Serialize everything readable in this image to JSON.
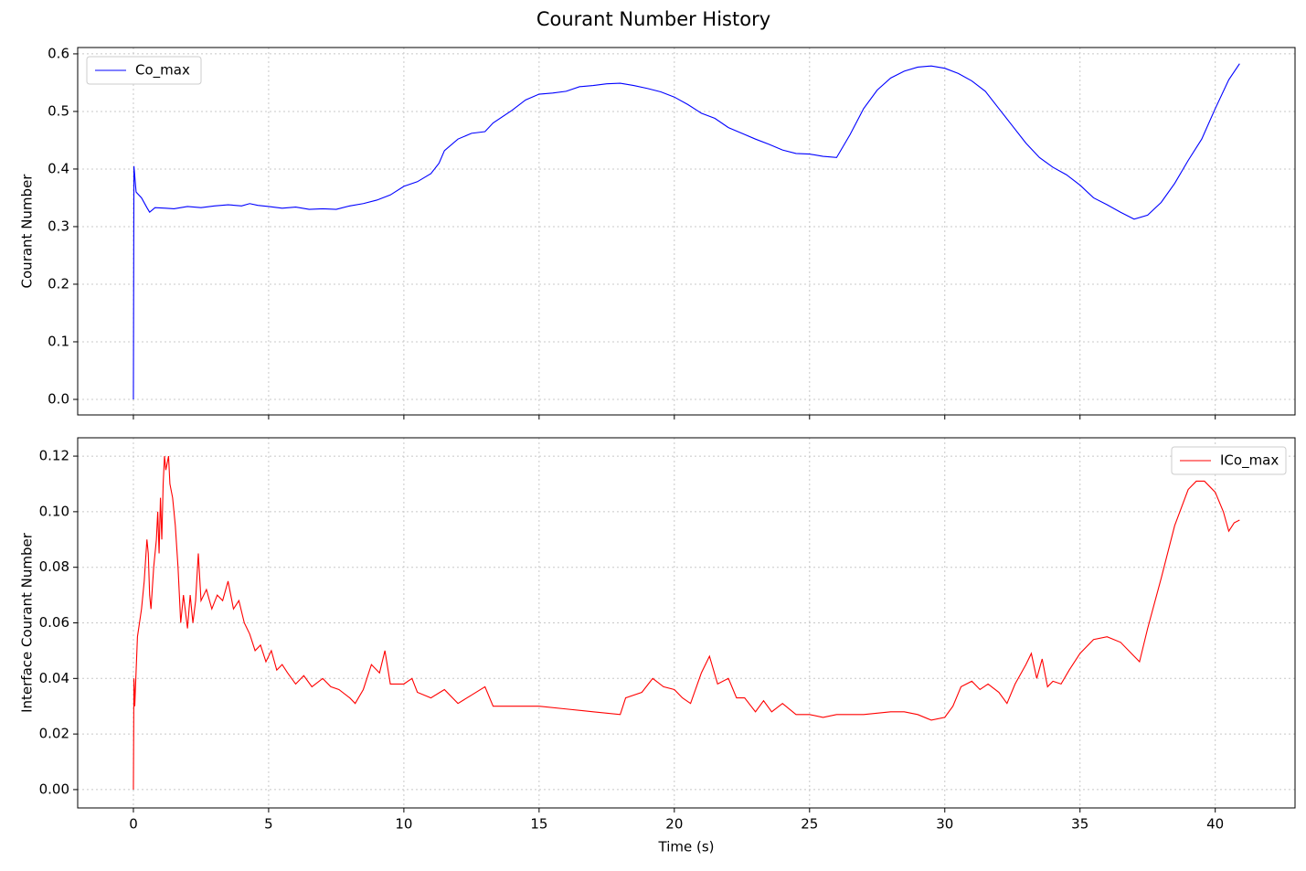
{
  "title": "Courant Number History",
  "chart_data": [
    {
      "type": "line",
      "ylabel": "Courant Number",
      "legend": "upper left",
      "grid": true,
      "x": [
        0,
        0.02,
        0.1,
        0.3,
        0.5,
        0.6,
        0.8,
        1.2,
        1.5,
        2,
        2.5,
        3,
        3.5,
        4,
        4.3,
        4.6,
        5,
        5.5,
        6,
        6.5,
        7,
        7.5,
        8,
        8.5,
        9,
        9.5,
        10,
        10.5,
        11,
        11.3,
        11.5,
        12,
        12.5,
        13,
        13.3,
        14,
        14.5,
        15,
        15.5,
        16,
        16.5,
        17,
        17.5,
        18,
        18.5,
        19,
        19.5,
        20,
        20.5,
        21,
        21.5,
        22,
        22.5,
        23,
        23.5,
        24,
        24.5,
        25,
        25.5,
        26,
        26.5,
        27,
        27.5,
        28,
        28.5,
        29,
        29.5,
        30,
        30.5,
        31,
        31.5,
        32,
        32.5,
        33,
        33.5,
        34,
        34.5,
        35,
        35.5,
        36,
        36.5,
        37,
        37.5,
        38,
        38.5,
        39,
        39.5,
        40,
        40.5,
        40.9
      ],
      "series": [
        {
          "name": "Co_max",
          "color": "#0000ff",
          "values": [
            0,
            0.405,
            0.36,
            0.35,
            0.333,
            0.325,
            0.333,
            0.332,
            0.331,
            0.335,
            0.333,
            0.336,
            0.338,
            0.336,
            0.34,
            0.337,
            0.335,
            0.332,
            0.334,
            0.33,
            0.331,
            0.33,
            0.336,
            0.34,
            0.346,
            0.355,
            0.37,
            0.378,
            0.392,
            0.41,
            0.432,
            0.452,
            0.462,
            0.465,
            0.48,
            0.502,
            0.52,
            0.53,
            0.532,
            0.535,
            0.543,
            0.545,
            0.548,
            0.549,
            0.545,
            0.54,
            0.534,
            0.525,
            0.512,
            0.497,
            0.488,
            0.472,
            0.462,
            0.452,
            0.443,
            0.433,
            0.427,
            0.426,
            0.422,
            0.42,
            0.46,
            0.505,
            0.537,
            0.558,
            0.57,
            0.577,
            0.579,
            0.575,
            0.566,
            0.553,
            0.535,
            0.505,
            0.475,
            0.445,
            0.42,
            0.403,
            0.39,
            0.372,
            0.35,
            0.338,
            0.325,
            0.313,
            0.32,
            0.342,
            0.375,
            0.415,
            0.452,
            0.505,
            0.555,
            0.583
          ]
        }
      ],
      "xlim": [
        -2.06,
        42.95
      ],
      "ylim": [
        -0.027,
        0.611
      ],
      "xticks": [
        0,
        5,
        10,
        15,
        20,
        25,
        30,
        35,
        40
      ],
      "yticks": [
        {
          "value": 0,
          "label": "0.0"
        },
        0.1,
        0.2,
        0.3,
        0.4,
        0.5,
        0.6
      ]
    },
    {
      "type": "line",
      "xlabel": "Time (s)",
      "ylabel": "Interface Courant Number",
      "legend": "upper right",
      "grid": true,
      "x": [
        0,
        0.02,
        0.05,
        0.15,
        0.3,
        0.4,
        0.5,
        0.55,
        0.6,
        0.65,
        0.75,
        0.85,
        0.9,
        0.95,
        1.0,
        1.05,
        1.1,
        1.15,
        1.2,
        1.3,
        1.35,
        1.45,
        1.55,
        1.65,
        1.75,
        1.85,
        2,
        2.1,
        2.2,
        2.3,
        2.4,
        2.5,
        2.7,
        2.9,
        3.1,
        3.3,
        3.5,
        3.7,
        3.9,
        4.1,
        4.3,
        4.5,
        4.7,
        4.9,
        5.1,
        5.3,
        5.5,
        5.7,
        6,
        6.3,
        6.6,
        7,
        7.3,
        7.6,
        8,
        8.2,
        8.5,
        8.8,
        9.1,
        9.3,
        9.5,
        10,
        10.3,
        10.5,
        11,
        11.5,
        12,
        12.5,
        13,
        13.3,
        14,
        15,
        16,
        17,
        18,
        18.2,
        18.8,
        19.2,
        19.6,
        20,
        20.3,
        20.6,
        21,
        21.3,
        21.6,
        22,
        22.3,
        22.6,
        23,
        23.3,
        23.6,
        24,
        24.5,
        25,
        25.5,
        26,
        27,
        28,
        28.5,
        29,
        29.5,
        30,
        30.3,
        30.6,
        31,
        31.3,
        31.6,
        32,
        32.3,
        32.6,
        33,
        33.2,
        33.4,
        33.6,
        33.8,
        34,
        34.3,
        34.6,
        35,
        35.5,
        36,
        36.5,
        37,
        37.2,
        37.5,
        38,
        38.5,
        39,
        39.3,
        39.6,
        40,
        40.3,
        40.5,
        40.7,
        40.9
      ],
      "series": [
        {
          "name": "ICo_max",
          "color": "#ff0000",
          "values": [
            0,
            0.04,
            0.03,
            0.055,
            0.065,
            0.075,
            0.09,
            0.085,
            0.07,
            0.065,
            0.08,
            0.09,
            0.1,
            0.085,
            0.105,
            0.09,
            0.11,
            0.12,
            0.115,
            0.12,
            0.11,
            0.105,
            0.095,
            0.08,
            0.06,
            0.07,
            0.058,
            0.07,
            0.06,
            0.068,
            0.085,
            0.068,
            0.072,
            0.065,
            0.07,
            0.068,
            0.075,
            0.065,
            0.068,
            0.06,
            0.056,
            0.05,
            0.052,
            0.046,
            0.05,
            0.043,
            0.045,
            0.042,
            0.038,
            0.041,
            0.037,
            0.04,
            0.037,
            0.036,
            0.033,
            0.031,
            0.036,
            0.045,
            0.042,
            0.05,
            0.038,
            0.038,
            0.04,
            0.035,
            0.033,
            0.036,
            0.031,
            0.034,
            0.037,
            0.03,
            0.03,
            0.03,
            0.029,
            0.028,
            0.027,
            0.033,
            0.035,
            0.04,
            0.037,
            0.036,
            0.033,
            0.031,
            0.042,
            0.048,
            0.038,
            0.04,
            0.033,
            0.033,
            0.028,
            0.032,
            0.028,
            0.031,
            0.027,
            0.027,
            0.026,
            0.027,
            0.027,
            0.028,
            0.028,
            0.027,
            0.025,
            0.026,
            0.03,
            0.037,
            0.039,
            0.036,
            0.038,
            0.035,
            0.031,
            0.038,
            0.045,
            0.049,
            0.04,
            0.047,
            0.037,
            0.039,
            0.038,
            0.043,
            0.049,
            0.054,
            0.055,
            0.053,
            0.048,
            0.046,
            0.058,
            0.076,
            0.095,
            0.108,
            0.111,
            0.111,
            0.107,
            0.1,
            0.093,
            0.096,
            0.097
          ]
        }
      ],
      "xlim": [
        -2.06,
        42.95
      ],
      "ylim": [
        -0.0066,
        0.1266
      ],
      "xticks": [
        0,
        5,
        10,
        15,
        20,
        25,
        30,
        35,
        40
      ],
      "yticks": [
        {
          "value": 0,
          "label": "0.00"
        },
        0.02,
        0.04,
        0.06,
        0.08,
        {
          "value": 0.1,
          "label": "0.10"
        },
        0.12
      ]
    }
  ]
}
